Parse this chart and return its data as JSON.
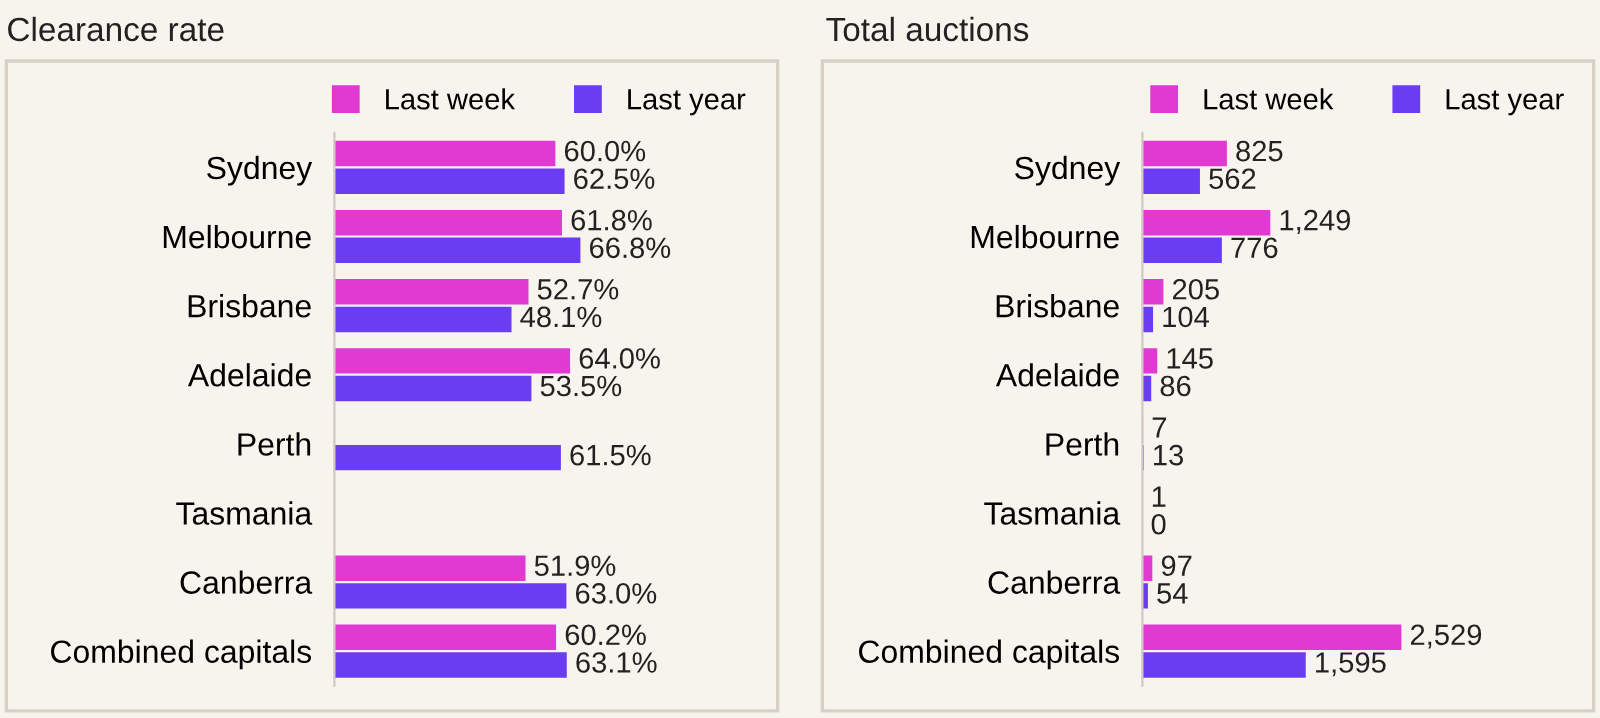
{
  "chart_data": [
    {
      "type": "bar",
      "orientation": "horizontal",
      "title": "Clearance rate",
      "categories": [
        "Sydney",
        "Melbourne",
        "Brisbane",
        "Adelaide",
        "Perth",
        "Tasmania",
        "Canberra",
        "Combined capitals"
      ],
      "tick_labels": "y",
      "legend": "top",
      "grid": false,
      "series": [
        {
          "name": "Last week",
          "color": "#e03ad2",
          "values": [
            60.0,
            61.8,
            52.7,
            64.0,
            null,
            null,
            51.9,
            60.2
          ],
          "value_labels": [
            "60.0%",
            "61.8%",
            "52.7%",
            "64.0%",
            null,
            null,
            "51.9%",
            "60.2%"
          ]
        },
        {
          "name": "Last year",
          "color": "#6a3cf2",
          "values": [
            62.5,
            66.8,
            48.1,
            53.5,
            61.5,
            null,
            63.0,
            63.1
          ],
          "value_labels": [
            "62.5%",
            "66.8%",
            "48.1%",
            "53.5%",
            "61.5%",
            null,
            "63.0%",
            "63.1%"
          ]
        }
      ]
    },
    {
      "type": "bar",
      "orientation": "horizontal",
      "title": "Total auctions",
      "categories": [
        "Sydney",
        "Melbourne",
        "Brisbane",
        "Adelaide",
        "Perth",
        "Tasmania",
        "Canberra",
        "Combined capitals"
      ],
      "tick_labels": "y",
      "legend": "top",
      "grid": false,
      "series": [
        {
          "name": "Last week",
          "color": "#e03ad2",
          "values": [
            825,
            1249,
            205,
            145,
            7,
            1,
            97,
            2529
          ],
          "value_labels": [
            "825",
            "1,249",
            "205",
            "145",
            "7",
            "1",
            "97",
            "2,529"
          ]
        },
        {
          "name": "Last year",
          "color": "#6a3cf2",
          "values": [
            562,
            776,
            104,
            86,
            13,
            0,
            54,
            1595
          ],
          "value_labels": [
            "562",
            "776",
            "104",
            "86",
            "13",
            "0",
            "54",
            "1,595"
          ]
        }
      ]
    }
  ]
}
